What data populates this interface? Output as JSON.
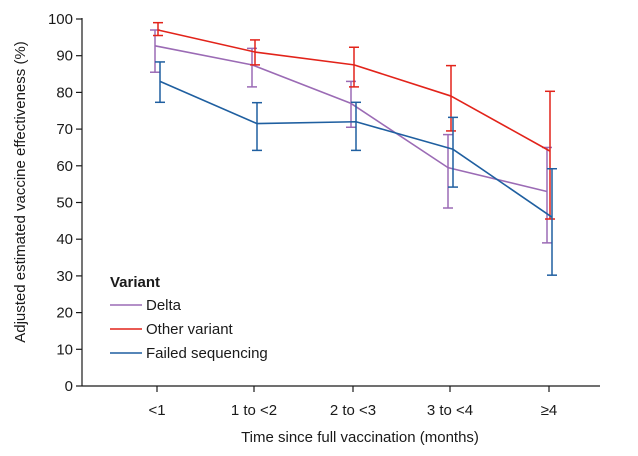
{
  "chart_data": {
    "type": "line",
    "title": "",
    "xlabel": "Time since full vaccination (months)",
    "ylabel": "Adjusted estimated vaccine effectiveness (%)",
    "categories": [
      "<1",
      "1 to <2",
      "2 to <3",
      "3 to <4",
      "≥4"
    ],
    "ylim": [
      0,
      100
    ],
    "yticks": [
      0,
      10,
      20,
      30,
      40,
      50,
      60,
      70,
      80,
      90,
      100
    ],
    "grid": false,
    "legend": {
      "title": "Variant",
      "position": "bottom-left"
    },
    "series": [
      {
        "name": "Delta",
        "color": "#9b6bb5",
        "values": [
          92.7,
          87.5,
          77.0,
          59.5,
          53.0
        ],
        "lower": [
          85.5,
          81.5,
          70.5,
          48.5,
          39.0
        ],
        "upper": [
          97.0,
          92.0,
          83.0,
          68.5,
          65.0
        ]
      },
      {
        "name": "Other variant",
        "color": "#e2231a",
        "values": [
          97.0,
          91.0,
          87.5,
          79.0,
          64.0
        ],
        "lower": [
          95.5,
          87.5,
          81.5,
          69.5,
          45.5
        ],
        "upper": [
          99.0,
          94.3,
          92.3,
          87.3,
          80.3
        ]
      },
      {
        "name": "Failed sequencing",
        "color": "#1f5fa0",
        "values": [
          83.0,
          71.5,
          72.0,
          64.5,
          46.0
        ],
        "lower": [
          77.3,
          64.2,
          64.2,
          54.2,
          30.2
        ],
        "upper": [
          88.3,
          77.2,
          77.3,
          73.2,
          59.2
        ]
      }
    ]
  }
}
